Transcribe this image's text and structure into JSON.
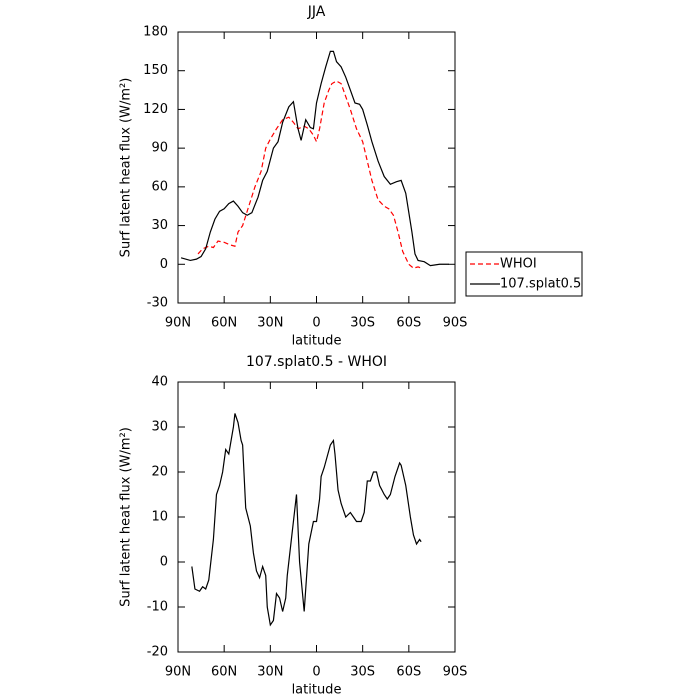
{
  "chart_data": [
    {
      "type": "line",
      "title": "JJA",
      "xlabel": "latitude",
      "ylabel": "Surf latent heat flux (W/m²)",
      "xlim": [
        90,
        -90
      ],
      "ylim": [
        -30,
        180
      ],
      "xticks": [
        {
          "value": 90,
          "label": "90N"
        },
        {
          "value": 60,
          "label": "60N"
        },
        {
          "value": 30,
          "label": "30N"
        },
        0,
        {
          "value": -30,
          "label": "30S"
        },
        {
          "value": -60,
          "label": "60S"
        },
        {
          "value": -90,
          "label": "90S"
        }
      ],
      "yticks": [
        -30,
        0,
        30,
        60,
        90,
        120,
        150,
        180
      ],
      "legend": "right",
      "series": [
        {
          "name": "WHOI",
          "color": "#ff0000",
          "dash": true,
          "x": [
            77,
            74,
            70,
            67,
            64,
            60,
            56,
            53,
            51,
            48,
            44,
            40,
            36,
            33,
            30,
            26,
            22,
            18,
            15,
            12,
            8,
            5,
            2,
            0,
            -2,
            -5,
            -8,
            -10,
            -13,
            -16,
            -19,
            -22,
            -26,
            -30,
            -33,
            -36,
            -40,
            -44,
            -47,
            -50,
            -53,
            -56,
            -60,
            -63,
            -66,
            -68
          ],
          "values": [
            8,
            12,
            14,
            13,
            18,
            17,
            15,
            14,
            25,
            30,
            45,
            60,
            72,
            90,
            97,
            105,
            112,
            114,
            110,
            105,
            107,
            105,
            100,
            95,
            105,
            125,
            135,
            140,
            142,
            140,
            130,
            120,
            105,
            95,
            80,
            65,
            50,
            45,
            43,
            38,
            25,
            10,
            0,
            -3,
            -2,
            -3
          ]
        },
        {
          "name": "107.splat0.5",
          "color": "#000000",
          "dash": false,
          "x": [
            88,
            82,
            78,
            75,
            72,
            69,
            66,
            63,
            60,
            57,
            54,
            51,
            48,
            45,
            42,
            38,
            35,
            32,
            28,
            25,
            22,
            18,
            15,
            12,
            10,
            7,
            4,
            2,
            0,
            -3,
            -6,
            -9,
            -11,
            -13,
            -16,
            -19,
            -22,
            -25,
            -28,
            -30,
            -33,
            -36,
            -40,
            -44,
            -48,
            -52,
            -55,
            -58,
            -62,
            -64,
            -66,
            -70,
            -74,
            -80,
            -86
          ],
          "values": [
            5,
            3,
            4,
            6,
            12,
            25,
            35,
            41,
            43,
            47,
            49,
            45,
            40,
            38,
            40,
            52,
            65,
            72,
            90,
            95,
            110,
            122,
            126,
            105,
            96,
            112,
            106,
            105,
            125,
            140,
            153,
            165,
            165,
            157,
            153,
            145,
            135,
            125,
            124,
            120,
            108,
            95,
            80,
            68,
            62,
            64,
            65,
            55,
            25,
            8,
            3,
            2,
            -1,
            0,
            0
          ]
        }
      ]
    },
    {
      "type": "line",
      "title": "107.splat0.5 - WHOI",
      "xlabel": "latitude",
      "ylabel": "Surf latent heat flux (W/m²)",
      "xlim": [
        90,
        -90
      ],
      "ylim": [
        -20,
        40
      ],
      "xticks": [
        {
          "value": 90,
          "label": "90N"
        },
        {
          "value": 60,
          "label": "60N"
        },
        {
          "value": 30,
          "label": "30N"
        },
        0,
        {
          "value": -30,
          "label": "30S"
        },
        {
          "value": -60,
          "label": "60S"
        },
        {
          "value": -90,
          "label": "90S"
        }
      ],
      "yticks": [
        -20,
        -10,
        0,
        10,
        20,
        30,
        40
      ],
      "color": "#000000",
      "x": [
        81,
        79,
        76,
        74,
        72,
        70,
        67,
        65,
        63,
        61,
        59,
        57,
        56,
        54,
        53,
        51,
        49,
        48,
        46,
        43,
        41,
        39,
        37,
        35,
        33,
        32,
        30,
        28,
        26,
        24,
        22,
        20,
        19,
        17,
        13,
        11,
        8,
        5,
        2,
        0,
        -2,
        -3,
        -5,
        -9,
        -11,
        -12,
        -14,
        -16,
        -19,
        -22,
        -24,
        -26,
        -29,
        -31,
        -33,
        -35,
        -37,
        -39,
        -41,
        -44,
        -46,
        -48,
        -51,
        -54,
        -55,
        -58,
        -61,
        -63,
        -65,
        -67,
        -68
      ],
      "values": [
        -1,
        -6,
        -6.5,
        -5.5,
        -6,
        -4,
        5,
        15,
        17,
        20,
        25,
        24,
        26,
        30,
        33,
        31,
        27,
        26,
        12,
        8,
        2,
        -2,
        -3.5,
        -1,
        -3,
        -10,
        -14,
        -13,
        -7,
        -8,
        -11,
        -8,
        -3,
        3,
        15,
        0,
        -11,
        4,
        9,
        9,
        14,
        19,
        21,
        26,
        27,
        24,
        16,
        13,
        10,
        11,
        10,
        9,
        9,
        11,
        18,
        18,
        20,
        20,
        17,
        15,
        14,
        15,
        19,
        22,
        21.5,
        17,
        10,
        6,
        4,
        5,
        4.5
      ]
    }
  ]
}
